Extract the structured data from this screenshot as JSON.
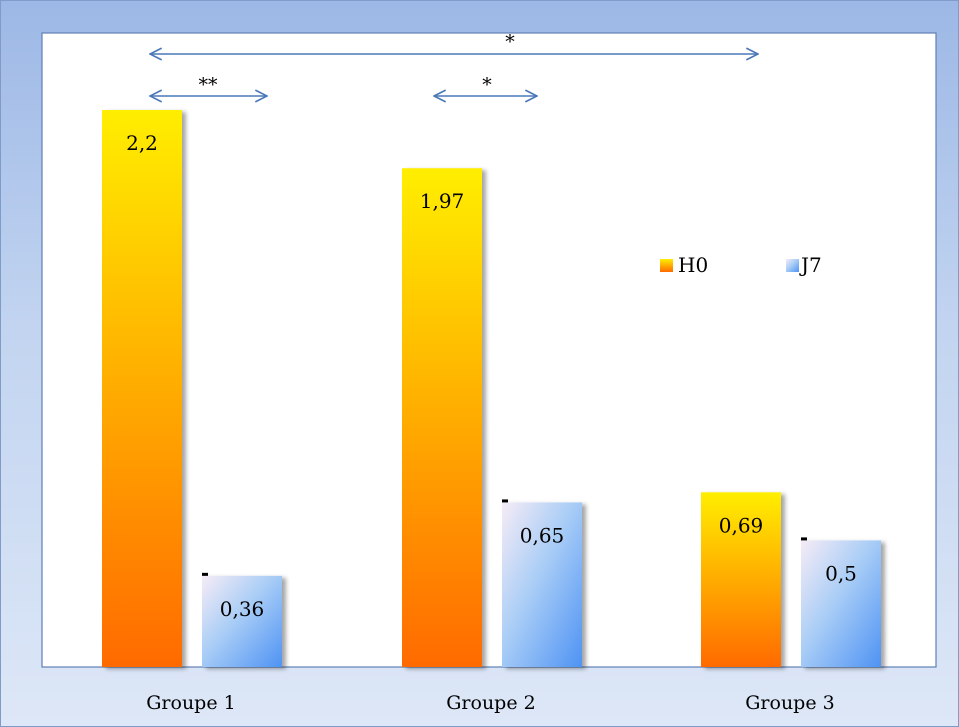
{
  "chart_data": {
    "type": "bar",
    "categories": [
      "Groupe 1",
      "Groupe 2",
      "Groupe 3"
    ],
    "series": [
      {
        "name": "H0",
        "values": [
          2.2,
          1.97,
          0.69
        ],
        "labels": [
          "2,2",
          "1,97",
          "0,69"
        ],
        "color_top": "#ffee00",
        "color_bottom": "#ff6a00"
      },
      {
        "name": "J7",
        "values": [
          0.36,
          0.65,
          0.5
        ],
        "labels": [
          "0,36",
          "0,65",
          "0,5"
        ],
        "color_top": "#f4eaf4",
        "color_bottom": "#5b9cf6"
      }
    ],
    "title": "",
    "xlabel": "",
    "ylabel": "",
    "ylim": [
      0,
      2.2
    ],
    "grid": false,
    "legend": "right",
    "annotations": [
      {
        "label": "*",
        "from": "Groupe 1",
        "to": "Groupe 3"
      },
      {
        "label": "**",
        "from": "Groupe 1",
        "to": "Groupe 1"
      },
      {
        "label": "*",
        "from": "Groupe 2",
        "to": "Groupe 2"
      }
    ]
  }
}
